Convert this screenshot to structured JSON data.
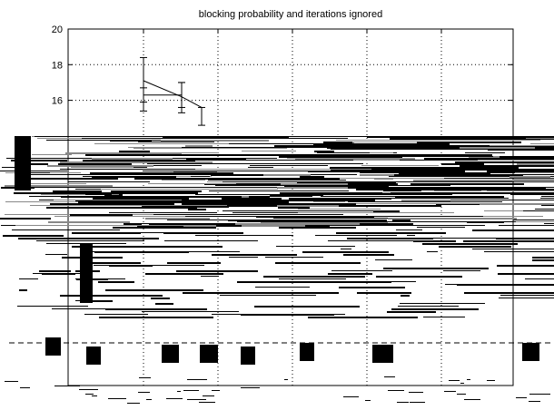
{
  "chart_data": {
    "type": "line",
    "title": "blocking probability and iterations ignored",
    "xlabel": "",
    "ylabel": "",
    "ylim": [
      0,
      20
    ],
    "yticks": [
      20,
      18,
      16
    ],
    "grid": true,
    "series": [
      {
        "x": [
          1,
          2,
          3
        ],
        "y": [
          17.1,
          16.2,
          15.6
        ],
        "err_low": [
          15.4,
          15.3,
          14.6
        ],
        "err_high": [
          18.4,
          17.0,
          15.6
        ]
      },
      {
        "x": [
          1,
          2
        ],
        "y": [
          16.3,
          16.3
        ],
        "err_low": [
          15.9,
          15.6
        ],
        "err_high": [
          16.7,
          17.0
        ]
      }
    ],
    "xlim": [
      0,
      10
    ]
  }
}
